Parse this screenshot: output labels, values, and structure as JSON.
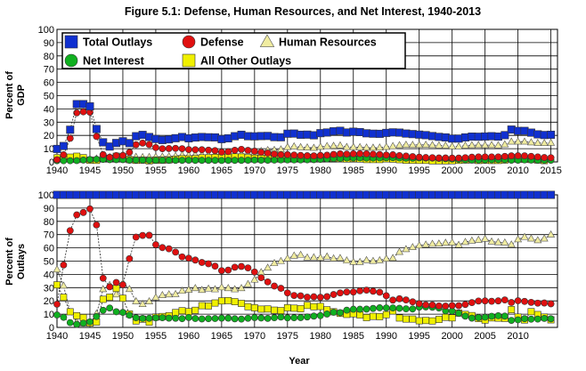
{
  "figure": {
    "title": "Figure 5.1: Defense, Human Resources, and Net Interest, 1940-2013",
    "xlabel": "Year"
  },
  "colors": {
    "total_outlays": "#1030d0",
    "defense": "#e01010",
    "human_resources": "#f0eca0",
    "net_interest": "#10b020",
    "all_other": "#f0f000",
    "grid": "#000000",
    "background": "#ffffff"
  },
  "legend": [
    {
      "name": "Total Outlays",
      "marker": "square",
      "color": "#1030d0"
    },
    {
      "name": "Defense",
      "marker": "circle",
      "color": "#e01010"
    },
    {
      "name": "Human Resources",
      "marker": "triangle",
      "color": "#f0eca0"
    },
    {
      "name": "Net Interest",
      "marker": "circle",
      "color": "#10b020"
    },
    {
      "name": "All Other Outlays",
      "marker": "square",
      "color": "#f0f000"
    }
  ],
  "chart_data": [
    {
      "type": "line",
      "ylabel_line1": "Percent of",
      "ylabel_line2": "GDP",
      "xlim": [
        1940,
        2016
      ],
      "ylim": [
        0,
        100
      ],
      "yticks": [
        0,
        10,
        20,
        30,
        40,
        50,
        60,
        70,
        80,
        90,
        100
      ],
      "xticks": [
        1940,
        1945,
        1950,
        1955,
        1960,
        1965,
        1970,
        1975,
        1980,
        1985,
        1990,
        1995,
        2000,
        2005,
        2010,
        2015
      ],
      "grid": true,
      "legend_position": "top-left",
      "x_start": 1940,
      "series": [
        {
          "name": "Total Outlays",
          "values": [
            9.8,
            12,
            24.3,
            43.6,
            43.6,
            41.9,
            24.8,
            14.8,
            11.6,
            14.3,
            15.6,
            14.2,
            19.4,
            20.4,
            18.8,
            17.3,
            16.5,
            17,
            17.9,
            18.8,
            17.8,
            18.4,
            18.8,
            18.6,
            18.5,
            17.2,
            17.8,
            19.4,
            20.5,
            19.4,
            19.3,
            19.5,
            19.6,
            18.7,
            18.6,
            21.3,
            21.4,
            20.5,
            20.6,
            20.1,
            21.7,
            22.2,
            23.1,
            23.5,
            22.2,
            22.8,
            22.5,
            21.6,
            21.3,
            21.2,
            21.9,
            22.3,
            22.1,
            21.4,
            21,
            20.6,
            20.2,
            19.5,
            18.9,
            18.5,
            17.6,
            17.6,
            18.5,
            19.1,
            19,
            19.2,
            19.4,
            19.1,
            20.2,
            24.4,
            23.4,
            23.4,
            22.1,
            20.8,
            20.3,
            20.5
          ]
        },
        {
          "name": "Defense",
          "values": [
            1.7,
            5.4,
            17.8,
            37,
            37.8,
            37.5,
            19.2,
            5.5,
            3.5,
            4.8,
            4.9,
            7.2,
            13,
            14.2,
            13.1,
            10.8,
            10,
            10.1,
            10.2,
            10,
            9.3,
            9.2,
            9.2,
            8.9,
            8.5,
            7.4,
            7.7,
            8.8,
            9.5,
            8.7,
            8.1,
            7.3,
            6.7,
            5.9,
            5.5,
            5.5,
            5.2,
            4.9,
            4.7,
            4.6,
            4.9,
            5.1,
            5.7,
            6.1,
            5.9,
            6.1,
            6.2,
            6.1,
            5.8,
            5.6,
            5.2,
            5.4,
            4.8,
            4.4,
            4,
            3.6,
            3.3,
            3.2,
            3,
            3,
            2.9,
            2.9,
            3.2,
            3.6,
            3.8,
            3.8,
            3.8,
            3.8,
            4.2,
            4.6,
            4.7,
            4.6,
            4.2,
            3.8,
            3.3,
            3.2
          ]
        },
        {
          "name": "Human Resources",
          "values": [
            4.3,
            3.4,
            2.1,
            1.4,
            1.4,
            1.4,
            2.5,
            4.3,
            3.7,
            3.6,
            5.4,
            4.1,
            3.8,
            3.6,
            3.7,
            3.9,
            4,
            4.2,
            4.5,
            5.2,
            5,
            5.4,
            5.3,
            5.4,
            5.4,
            5.1,
            5.3,
            5.6,
            6.1,
            6.3,
            7,
            8.2,
            8.9,
            9,
            9.4,
            11.2,
            11.7,
            11.1,
            10.9,
            10.6,
            11.4,
            11.9,
            12.1,
            12.4,
            11.2,
            11.2,
            11.1,
            10.8,
            10.7,
            10.8,
            11.3,
            11.9,
            12.6,
            12.9,
            12.8,
            12.8,
            12.9,
            12.7,
            12.4,
            12.3,
            11.7,
            11.7,
            12.3,
            12.6,
            12.7,
            12.6,
            12.7,
            12.5,
            13.2,
            15.3,
            15.3,
            15.3,
            14.7,
            14.3,
            14.2,
            14.4
          ]
        },
        {
          "name": "Net Interest",
          "values": [
            0.9,
            0.9,
            0.9,
            1,
            1.4,
            1.8,
            2,
            1.9,
            1.7,
            1.7,
            1.7,
            1.3,
            1.4,
            1.4,
            1.3,
            1.2,
            1.2,
            1.2,
            1.2,
            1.2,
            1.3,
            1.2,
            1.2,
            1.2,
            1.2,
            1.1,
            1.2,
            1.2,
            1.2,
            1.3,
            1.4,
            1.3,
            1.3,
            1.4,
            1.5,
            1.5,
            1.5,
            1.5,
            1.6,
            1.7,
            1.9,
            2.2,
            2.6,
            2.6,
            2.9,
            3,
            3,
            2.9,
            2.9,
            3,
            3.1,
            3.2,
            3,
            2.8,
            2.8,
            3,
            2.9,
            2.9,
            2.7,
            2.4,
            2.2,
            1.9,
            1.6,
            1.4,
            1.4,
            1.5,
            1.6,
            1.7,
            1.7,
            1.3,
            1.3,
            1.5,
            1.4,
            1.3,
            1.3,
            1.3
          ]
        },
        {
          "name": "All Other Outlays",
          "values": [
            3.1,
            2.6,
            3.6,
            4.3,
            3.2,
            1.3,
            1.2,
            3.1,
            2.8,
            4.3,
            3.8,
            1.7,
            1.2,
            1.3,
            0.8,
            1.3,
            1.3,
            1.5,
            2,
            2.4,
            2.3,
            2.5,
            3.1,
            3.1,
            3.4,
            3.6,
            3.6,
            3.8,
            3.7,
            3.1,
            2.8,
            2.7,
            2.7,
            2.4,
            2.2,
            3.1,
            3,
            3,
            3.4,
            3.2,
            3.4,
            3,
            2.7,
            2.4,
            2.2,
            2.5,
            2.2,
            1.8,
            1.8,
            1.8,
            2.3,
            2.1,
            1.7,
            1.3,
            1.3,
            1.2,
            1.2,
            0.8,
            0.8,
            0.8,
            0.9,
            1.2,
            1.4,
            1.5,
            1.1,
            1.3,
            1.1,
            1.1,
            1.4,
            3.2,
            2.1,
            2.0,
            1.8,
            1.4,
            1
          ]
        }
      ]
    },
    {
      "type": "line",
      "ylabel_line1": "Percent of",
      "ylabel_line2": "Outlays",
      "xlim": [
        1940,
        2016
      ],
      "ylim": [
        0,
        100
      ],
      "yticks": [
        0,
        10,
        20,
        30,
        40,
        50,
        60,
        70,
        80,
        90,
        100
      ],
      "xticks": [
        1940,
        1945,
        1950,
        1955,
        1960,
        1965,
        1970,
        1975,
        1980,
        1985,
        1990,
        1995,
        2000,
        2005,
        2010
      ],
      "grid": true,
      "x_start": 1940,
      "series": [
        {
          "name": "Total Outlays",
          "values": [
            100,
            100,
            100,
            100,
            100,
            100,
            100,
            100,
            100,
            100,
            100,
            100,
            100,
            100,
            100,
            100,
            100,
            100,
            100,
            100,
            100,
            100,
            100,
            100,
            100,
            100,
            100,
            100,
            100,
            100,
            100,
            100,
            100,
            100,
            100,
            100,
            100,
            100,
            100,
            100,
            100,
            100,
            100,
            100,
            100,
            100,
            100,
            100,
            100,
            100,
            100,
            100,
            100,
            100,
            100,
            100,
            100,
            100,
            100,
            100,
            100,
            100,
            100,
            100,
            100,
            100,
            100,
            100,
            100,
            100,
            100,
            100,
            100,
            100,
            100,
            100
          ]
        },
        {
          "name": "Defense",
          "values": [
            17.5,
            47.1,
            73,
            84.9,
            86.7,
            89.4,
            77.3,
            37.1,
            30.6,
            33.9,
            32.2,
            51.8,
            68.1,
            69.4,
            69.5,
            62.4,
            60.2,
            59.3,
            56.8,
            53.2,
            52.2,
            50.8,
            49,
            48,
            46.2,
            42.8,
            43.2,
            45.4,
            46,
            44.9,
            41.8,
            37.5,
            34.3,
            31.2,
            29.5,
            26,
            24.1,
            23.8,
            22.8,
            23.1,
            22.7,
            23.2,
            24.8,
            26,
            26.7,
            26.7,
            27.6,
            28.1,
            27.3,
            26.5,
            23.9,
            20.6,
            21.6,
            20.7,
            19.3,
            17.9,
            17,
            16.9,
            16.2,
            16.1,
            16.5,
            16.4,
            17.3,
            18.7,
            19.9,
            20,
            19.7,
            20,
            20.7,
            18.8,
            20.1,
            19.6,
            18.9,
            18.3,
            18.4,
            17.8
          ]
        },
        {
          "name": "Human Resources",
          "values": [
            43.7,
            31.5,
            11.5,
            4,
            2.9,
            3.1,
            10.4,
            28.8,
            32,
            24.9,
            33.3,
            28.9,
            19.7,
            17.6,
            19.6,
            22.6,
            24.3,
            24.9,
            25.1,
            27.6,
            28.4,
            29.6,
            28.2,
            29.2,
            28.7,
            30.2,
            29.6,
            28.7,
            29.6,
            32.6,
            36,
            41.6,
            45,
            48.5,
            50,
            52,
            54.1,
            54.7,
            52.7,
            52.8,
            52.6,
            53.4,
            52,
            52.3,
            50.5,
            49.3,
            49.3,
            50.7,
            50.1,
            50.6,
            51.8,
            52.3,
            56.9,
            59,
            60.5,
            61.8,
            62.4,
            63,
            63.2,
            63.8,
            64,
            62.2,
            64.4,
            65.4,
            66,
            66.8,
            64.7,
            64.2,
            64,
            62.5,
            66.4,
            68.2,
            67,
            65.7,
            67,
            70
          ]
        },
        {
          "name": "Net Interest",
          "values": [
            9.4,
            7.6,
            3.6,
            2.3,
            3.2,
            4.2,
            8.2,
            12.9,
            14.6,
            11.8,
            11.3,
            9.2,
            7.3,
            6.8,
            6.9,
            7.2,
            7.3,
            7,
            6.9,
            6.6,
            7.5,
            6.7,
            6.4,
            6.6,
            6.7,
            7,
            7,
            6.5,
            6.3,
            6.9,
            7.4,
            7.1,
            6.8,
            7.3,
            7.8,
            7.2,
            7.3,
            7.4,
            7.9,
            8.5,
            8.9,
            10.1,
            11.4,
            11.1,
            13,
            13.7,
            13.7,
            13.8,
            14.3,
            14.8,
            14.7,
            14.7,
            14.4,
            14,
            13.9,
            15.3,
            15.4,
            15.2,
            14.6,
            12.5,
            12.3,
            10.6,
            8.5,
            7,
            7.4,
            7.7,
            8.4,
            8.8,
            8.5,
            5.3,
            5.7,
            6.6,
            6.2,
            6.3,
            6.8,
            6.5
          ]
        },
        {
          "name": "All Other Outlays",
          "values": [
            32.1,
            22.7,
            11.8,
            8.8,
            7.4,
            3.3,
            4.1,
            21.2,
            22.8,
            29.4,
            22,
            10.1,
            4.9,
            6.2,
            4,
            7.8,
            8.2,
            8.8,
            11.2,
            12.6,
            11.9,
            12.9,
            16.4,
            16.2,
            18.4,
            20,
            20.2,
            19.4,
            18.1,
            15.6,
            14.8,
            13.8,
            13.9,
            13,
            12.7,
            14.8,
            14.5,
            14.1,
            16.6,
            15.6,
            15.8,
            13.3,
            11.8,
            10.6,
            9.8,
            10.3,
            9.4,
            7.4,
            8.3,
            8.1,
            9.6,
            12.4,
            7.1,
            6.3,
            6.3,
            5,
            5.2,
            4.9,
            6,
            7.6,
            7.2,
            10.8,
            9.8,
            8.9,
            6.7,
            5.5,
            7.2,
            7,
            6.8,
            13.4,
            7.8,
            5.6,
            11.9,
            9.7,
            7.8,
            5.7
          ]
        }
      ]
    }
  ]
}
